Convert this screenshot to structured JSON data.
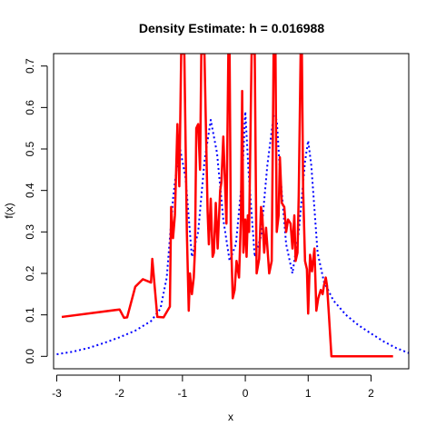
{
  "chart_data": {
    "type": "line",
    "title": "Density Estimate: h = 0.016988",
    "xlabel": "x",
    "ylabel": "f(x)",
    "xlim": [
      -3.05,
      2.6
    ],
    "ylim": [
      -0.03,
      0.73
    ],
    "xticks": [
      -3,
      -2,
      -1,
      0,
      1,
      2
    ],
    "yticks": [
      0.0,
      0.1,
      0.2,
      0.3,
      0.4,
      0.5,
      0.6,
      0.7
    ],
    "grid": false,
    "legend": "none",
    "series": [
      {
        "color": "#ff0000",
        "style": "solid",
        "x": [
          -2.92,
          -2.0,
          -1.93,
          -1.88,
          -1.75,
          -1.63,
          -1.5,
          -1.48,
          -1.4,
          -1.3,
          -1.2,
          -1.18,
          -1.15,
          -1.12,
          -1.08,
          -1.05,
          -1.02,
          -0.97,
          -0.93,
          -0.9,
          -0.88,
          -0.85,
          -0.82,
          -0.8,
          -0.78,
          -0.75,
          -0.72,
          -0.7,
          -0.65,
          -0.6,
          -0.58,
          -0.55,
          -0.52,
          -0.5,
          -0.47,
          -0.44,
          -0.4,
          -0.38,
          -0.35,
          -0.3,
          -0.27,
          -0.25,
          -0.23,
          -0.2,
          -0.17,
          -0.14,
          -0.1,
          -0.07,
          -0.05,
          -0.03,
          0.0,
          0.02,
          0.04,
          0.06,
          0.1,
          0.15,
          0.18,
          0.22,
          0.25,
          0.27,
          0.3,
          0.33,
          0.38,
          0.42,
          0.45,
          0.48,
          0.5,
          0.53,
          0.55,
          0.58,
          0.62,
          0.65,
          0.68,
          0.72,
          0.75,
          0.78,
          0.8,
          0.83,
          0.85,
          0.88,
          0.9,
          0.92,
          0.95,
          0.98,
          1.0,
          1.03,
          1.06,
          1.1,
          1.13,
          1.16,
          1.2,
          1.23,
          1.25,
          1.28,
          1.3,
          1.33,
          1.37,
          1.4,
          1.45,
          1.52,
          1.6,
          1.8,
          2.35
        ],
        "y": [
          0.095,
          0.113,
          0.093,
          0.094,
          0.168,
          0.186,
          0.178,
          0.235,
          0.095,
          0.094,
          0.12,
          0.36,
          0.285,
          0.34,
          0.56,
          0.41,
          0.73,
          0.73,
          0.3,
          0.11,
          0.2,
          0.15,
          0.19,
          0.26,
          0.55,
          0.56,
          0.45,
          0.73,
          0.73,
          0.35,
          0.27,
          0.38,
          0.24,
          0.25,
          0.37,
          0.26,
          0.4,
          0.42,
          0.53,
          0.32,
          0.73,
          0.73,
          0.3,
          0.14,
          0.16,
          0.23,
          0.19,
          0.33,
          0.64,
          0.25,
          0.33,
          0.24,
          0.34,
          0.3,
          0.73,
          0.73,
          0.2,
          0.235,
          0.36,
          0.34,
          0.25,
          0.31,
          0.2,
          0.23,
          0.73,
          0.73,
          0.3,
          0.34,
          0.48,
          0.37,
          0.36,
          0.3,
          0.33,
          0.32,
          0.26,
          0.34,
          0.23,
          0.25,
          0.39,
          0.73,
          0.73,
          0.4,
          0.23,
          0.21,
          0.103,
          0.245,
          0.205,
          0.26,
          0.11,
          0.14,
          0.16,
          0.15,
          0.17,
          0.19,
          0.17,
          0.1,
          0.0,
          0.0,
          0.0,
          0.0,
          0.0,
          0.0,
          0.0
        ]
      },
      {
        "color": "#0000ff",
        "style": "dotted",
        "x": [
          -3.0,
          -2.75,
          -2.5,
          -2.25,
          -2.0,
          -1.75,
          -1.5,
          -1.35,
          -1.25,
          -1.15,
          -1.05,
          -0.95,
          -0.85,
          -0.75,
          -0.65,
          -0.55,
          -0.45,
          -0.35,
          -0.25,
          -0.15,
          -0.05,
          0.0,
          0.05,
          0.15,
          0.25,
          0.35,
          0.45,
          0.5,
          0.55,
          0.65,
          0.75,
          0.85,
          0.95,
          1.0,
          1.05,
          1.15,
          1.25,
          1.4,
          1.6,
          1.8,
          2.0,
          2.2,
          2.4,
          2.6
        ],
        "y": [
          0.005,
          0.011,
          0.02,
          0.032,
          0.046,
          0.062,
          0.085,
          0.115,
          0.19,
          0.38,
          0.51,
          0.43,
          0.24,
          0.3,
          0.47,
          0.57,
          0.49,
          0.33,
          0.23,
          0.27,
          0.43,
          0.59,
          0.45,
          0.24,
          0.29,
          0.46,
          0.58,
          0.57,
          0.45,
          0.27,
          0.2,
          0.3,
          0.47,
          0.52,
          0.46,
          0.25,
          0.18,
          0.135,
          0.1,
          0.075,
          0.055,
          0.036,
          0.02,
          0.008
        ]
      }
    ]
  }
}
